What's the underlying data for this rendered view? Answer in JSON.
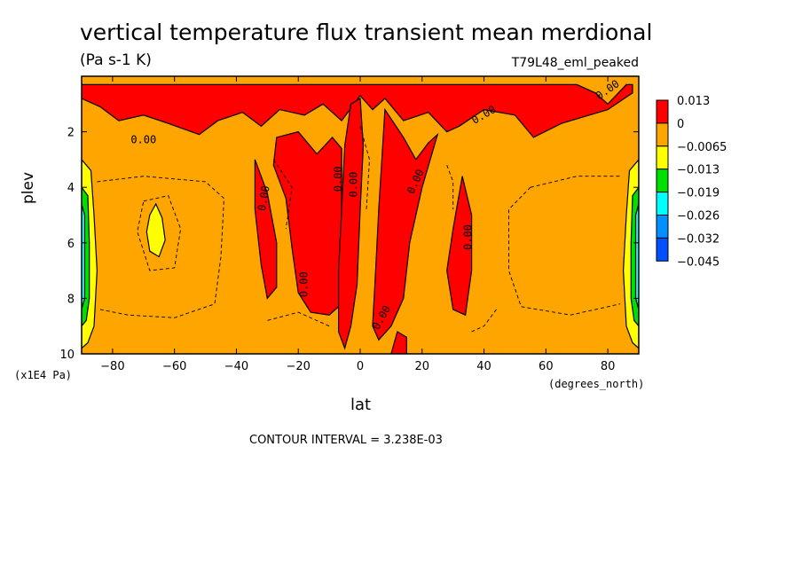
{
  "chart_data": {
    "type": "heatmap",
    "title": "vertical temperature flux transient mean merdional",
    "subtitle": "(Pa s-1 K)",
    "run_label": "T79L48_eml_peaked",
    "xlabel": "lat",
    "x_units": "(degrees_north)",
    "ylabel": "plev",
    "y_units": "(x1E4 Pa)",
    "xlim": [
      -90,
      90
    ],
    "ylim": [
      10,
      0
    ],
    "x_ticks": [
      -80,
      -60,
      -40,
      -20,
      0,
      20,
      40,
      60,
      80
    ],
    "y_ticks": [
      2,
      4,
      6,
      8,
      10
    ],
    "contour_interval_text": "CONTOUR INTERVAL = 3.238E-03",
    "contour_label": "0.00",
    "legend": {
      "levels": [
        "0.013",
        "0",
        "−0.0065",
        "−0.013",
        "−0.019",
        "−0.026",
        "−0.032",
        "−0.045"
      ],
      "colors": [
        "#ff0000",
        "#ffa500",
        "#ffff00",
        "#00e000",
        "#00ffff",
        "#0090ff",
        "#0050ff"
      ]
    },
    "colors": {
      "positive": "#ff0000",
      "near_zero": "#ffa500",
      "neg_weak": "#ffff00",
      "neg_mid": "#00e000",
      "neg_strong": "#00ffff",
      "neg_stronger": "#0090ff",
      "neg_strongest": "#0050ff"
    },
    "regions": [
      {
        "name": "upper-band",
        "value": "positive",
        "points": [
          [
            -90,
            0.3
          ],
          [
            -80,
            0.3
          ],
          [
            -60,
            0.3
          ],
          [
            -40,
            0.3
          ],
          [
            -20,
            0.3
          ],
          [
            0,
            0.3
          ],
          [
            20,
            0.3
          ],
          [
            40,
            0.3
          ],
          [
            60,
            0.3
          ],
          [
            70,
            0.3
          ],
          [
            76,
            0.6
          ],
          [
            80,
            1.0
          ],
          [
            86,
            0.3
          ],
          [
            88,
            0.3
          ],
          [
            88,
            0.6
          ],
          [
            80,
            1.2
          ],
          [
            65,
            1.7
          ],
          [
            56,
            2.2
          ],
          [
            50,
            1.4
          ],
          [
            40,
            1.2
          ],
          [
            32,
            1.8
          ],
          [
            28,
            2.0
          ],
          [
            22,
            1.3
          ],
          [
            14,
            1.6
          ],
          [
            8,
            0.8
          ],
          [
            4,
            1.2
          ],
          [
            0,
            0.7
          ],
          [
            -6,
            1.6
          ],
          [
            -12,
            1.0
          ],
          [
            -18,
            1.4
          ],
          [
            -26,
            1.2
          ],
          [
            -32,
            1.8
          ],
          [
            -38,
            1.3
          ],
          [
            -46,
            1.6
          ],
          [
            -52,
            2.1
          ],
          [
            -62,
            1.7
          ],
          [
            -70,
            1.4
          ],
          [
            -78,
            1.6
          ],
          [
            -84,
            1.1
          ],
          [
            -90,
            0.8
          ]
        ]
      },
      {
        "name": "tropical-column-south",
        "value": "positive",
        "points": [
          [
            -27,
            2.2
          ],
          [
            -20,
            2.0
          ],
          [
            -14,
            2.8
          ],
          [
            -9,
            2.2
          ],
          [
            -6,
            2.6
          ],
          [
            -6,
            4.8
          ],
          [
            -4,
            6.8
          ],
          [
            -6,
            8.2
          ],
          [
            -10,
            8.6
          ],
          [
            -16,
            8.5
          ],
          [
            -20,
            7.8
          ],
          [
            -22,
            6.2
          ],
          [
            -24,
            4.4
          ],
          [
            -28,
            3.2
          ]
        ]
      },
      {
        "name": "tropical-column-center",
        "value": "positive",
        "points": [
          [
            -3,
            1.0
          ],
          [
            0,
            0.8
          ],
          [
            1,
            2.5
          ],
          [
            0,
            4.8
          ],
          [
            -1,
            7.5
          ],
          [
            -3,
            9.0
          ],
          [
            -5,
            9.8
          ],
          [
            -7,
            9.2
          ],
          [
            -7,
            7.0
          ],
          [
            -6,
            4.8
          ],
          [
            -5,
            2.5
          ]
        ]
      },
      {
        "name": "tropical-column-north",
        "value": "positive",
        "points": [
          [
            8,
            1.2
          ],
          [
            14,
            2.2
          ],
          [
            18,
            3.0
          ],
          [
            22,
            2.4
          ],
          [
            25,
            2.1
          ],
          [
            20,
            4.0
          ],
          [
            16,
            6.0
          ],
          [
            14,
            8.0
          ],
          [
            10,
            9.0
          ],
          [
            6,
            9.5
          ],
          [
            4,
            9.0
          ],
          [
            5,
            7.0
          ],
          [
            6,
            4.8
          ],
          [
            7,
            3.0
          ]
        ]
      },
      {
        "name": "column-30n",
        "value": "positive",
        "points": [
          [
            33,
            3.6
          ],
          [
            36,
            5.0
          ],
          [
            36,
            7.0
          ],
          [
            34,
            8.6
          ],
          [
            30,
            8.4
          ],
          [
            28,
            7.0
          ],
          [
            30,
            5.5
          ]
        ]
      },
      {
        "name": "column-30s",
        "value": "positive",
        "points": [
          [
            -34,
            3.0
          ],
          [
            -30,
            4.2
          ],
          [
            -27,
            6.0
          ],
          [
            -27,
            7.6
          ],
          [
            -30,
            8.0
          ],
          [
            -32,
            6.8
          ],
          [
            -34,
            4.8
          ]
        ]
      },
      {
        "name": "column-16n-bottom",
        "value": "positive",
        "points": [
          [
            12,
            9.2
          ],
          [
            15,
            9.4
          ],
          [
            15,
            10
          ],
          [
            10,
            10
          ],
          [
            11,
            9.6
          ]
        ]
      },
      {
        "name": "yellow-60s",
        "value": "neg_weak",
        "points": [
          [
            -68,
            5.0
          ],
          [
            -66,
            4.6
          ],
          [
            -64,
            5.1
          ],
          [
            -63,
            5.9
          ],
          [
            -65,
            6.5
          ],
          [
            -68,
            6.3
          ],
          [
            -69,
            5.6
          ]
        ]
      },
      {
        "name": "edge-south",
        "value": "neg_weak",
        "points": [
          [
            -90,
            3.0
          ],
          [
            -87,
            3.4
          ],
          [
            -86,
            5.0
          ],
          [
            -85,
            7.0
          ],
          [
            -86,
            9.0
          ],
          [
            -88,
            9.6
          ],
          [
            -90,
            9.8
          ]
        ]
      },
      {
        "name": "edge-south-green",
        "value": "neg_mid",
        "points": [
          [
            -90,
            4.0
          ],
          [
            -88,
            4.3
          ],
          [
            -87.5,
            6.0
          ],
          [
            -87.5,
            8.0
          ],
          [
            -88.5,
            8.8
          ],
          [
            -90,
            9.0
          ]
        ]
      },
      {
        "name": "edge-south-cyan",
        "value": "neg_strong",
        "points": [
          [
            -90,
            4.6
          ],
          [
            -89,
            5.0
          ],
          [
            -89,
            8.0
          ],
          [
            -90,
            8.4
          ]
        ]
      },
      {
        "name": "edge-north",
        "value": "neg_weak",
        "points": [
          [
            90,
            3.0
          ],
          [
            87,
            3.4
          ],
          [
            86,
            5.0
          ],
          [
            85,
            7.0
          ],
          [
            86,
            9.0
          ],
          [
            88,
            9.6
          ],
          [
            90,
            9.8
          ]
        ]
      },
      {
        "name": "edge-north-green",
        "value": "neg_mid",
        "points": [
          [
            90,
            4.0
          ],
          [
            88,
            4.3
          ],
          [
            87.5,
            6.0
          ],
          [
            87.5,
            8.0
          ],
          [
            88.5,
            8.8
          ],
          [
            90,
            9.0
          ]
        ]
      },
      {
        "name": "edge-north-cyan",
        "value": "neg_strong",
        "points": [
          [
            90,
            4.6
          ],
          [
            89,
            5.0
          ],
          [
            89,
            8.0
          ],
          [
            90,
            8.4
          ]
        ]
      }
    ],
    "dashed_contours": [
      [
        [
          -85,
          3.8
        ],
        [
          -70,
          3.6
        ],
        [
          -50,
          3.8
        ],
        [
          -44,
          4.4
        ],
        [
          -45,
          6.5
        ],
        [
          -47,
          8.2
        ],
        [
          -60,
          8.7
        ],
        [
          -75,
          8.6
        ],
        [
          -84,
          8.4
        ]
      ],
      [
        [
          -70,
          4.5
        ],
        [
          -62,
          4.3
        ],
        [
          -58,
          5.5
        ],
        [
          -60,
          6.9
        ],
        [
          -68,
          7.0
        ],
        [
          -72,
          5.6
        ],
        [
          -70,
          4.5
        ]
      ],
      [
        [
          -28,
          3.0
        ],
        [
          -22,
          4.0
        ],
        [
          -24,
          5.5
        ]
      ],
      [
        [
          55,
          4.0
        ],
        [
          70,
          3.6
        ],
        [
          84,
          3.6
        ]
      ],
      [
        [
          55,
          4.0
        ],
        [
          48,
          4.8
        ],
        [
          48,
          7.0
        ],
        [
          52,
          8.3
        ],
        [
          68,
          8.6
        ],
        [
          84,
          8.2
        ]
      ],
      [
        [
          -10,
          9.0
        ],
        [
          -20,
          8.5
        ],
        [
          -30,
          8.8
        ]
      ],
      [
        [
          28,
          3.2
        ],
        [
          30,
          3.8
        ],
        [
          30,
          4.8
        ]
      ],
      [
        [
          0,
          1.8
        ],
        [
          3,
          3.0
        ],
        [
          2,
          4.8
        ]
      ],
      [
        [
          44,
          8.4
        ],
        [
          40,
          9.0
        ],
        [
          36,
          9.2
        ]
      ]
    ],
    "contour_labels": [
      {
        "text": "0.00",
        "lat": -70,
        "plev": 2.3,
        "angle": 0
      },
      {
        "text": "0.00",
        "lat": -31,
        "plev": 4.4,
        "angle": -80
      },
      {
        "text": "0.00",
        "lat": -18,
        "plev": 7.5,
        "angle": -90
      },
      {
        "text": "0.00",
        "lat": -7,
        "plev": 3.7,
        "angle": -90
      },
      {
        "text": "0.00",
        "lat": -2,
        "plev": 3.9,
        "angle": -90
      },
      {
        "text": "0.00",
        "lat": 18,
        "plev": 3.8,
        "angle": -65
      },
      {
        "text": "0.00",
        "lat": 35,
        "plev": 5.8,
        "angle": -90
      },
      {
        "text": "0.00",
        "lat": 7,
        "plev": 8.7,
        "angle": -60
      },
      {
        "text": "0.00",
        "lat": 40,
        "plev": 1.4,
        "angle": -30
      },
      {
        "text": "0.00",
        "lat": 80,
        "plev": 0.5,
        "angle": -35
      }
    ]
  }
}
